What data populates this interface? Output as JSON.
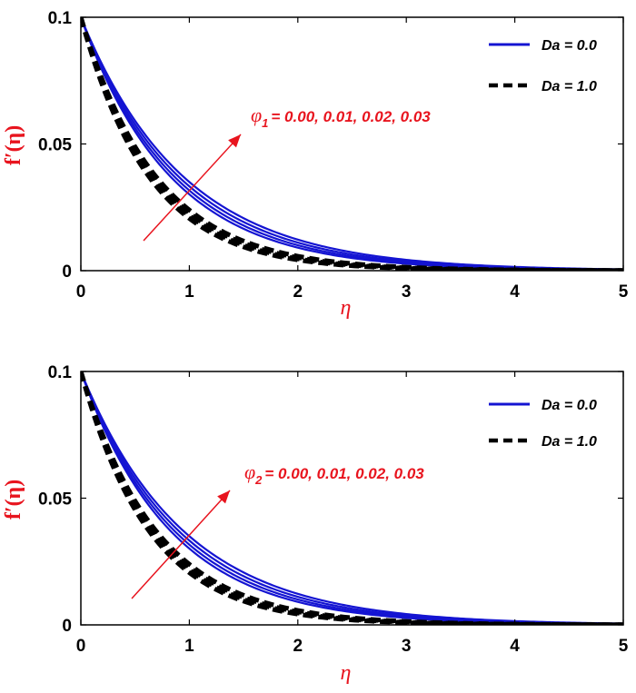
{
  "chart_data": [
    {
      "type": "line",
      "panel": "top",
      "ylabel": "f′(η)",
      "xlabel": "η",
      "xlim": [
        0,
        5
      ],
      "ylim": [
        0,
        0.1
      ],
      "xticks": [
        "0",
        "1",
        "2",
        "3",
        "4",
        "5"
      ],
      "yticks": [
        "0",
        "0.05",
        "0.1"
      ],
      "grid": false,
      "legend_position": "top-right",
      "legend": [
        {
          "label": "Da = 0.0",
          "style": "solid",
          "color": "#1414d2"
        },
        {
          "label": "Da = 1.0",
          "style": "dashed",
          "color": "#000000"
        }
      ],
      "annotation": {
        "symbol": "φ",
        "subscript": "1",
        "text": "= 0.00, 0.01, 0.02, 0.03"
      },
      "series": [
        {
          "group": "Da = 0.0",
          "phi": 0.0,
          "decay_rate": 1.2
        },
        {
          "group": "Da = 0.0",
          "phi": 0.01,
          "decay_rate": 1.15
        },
        {
          "group": "Da = 0.0",
          "phi": 0.02,
          "decay_rate": 1.1
        },
        {
          "group": "Da = 0.0",
          "phi": 0.03,
          "decay_rate": 1.05
        },
        {
          "group": "Da = 1.0",
          "phi": 0.0,
          "decay_rate": 1.58
        },
        {
          "group": "Da = 1.0",
          "phi": 0.01,
          "decay_rate": 1.53
        },
        {
          "group": "Da = 1.0",
          "phi": 0.02,
          "decay_rate": 1.48
        },
        {
          "group": "Da = 1.0",
          "phi": 0.03,
          "decay_rate": 1.43
        }
      ]
    },
    {
      "type": "line",
      "panel": "bottom",
      "ylabel": "f′(η)",
      "xlabel": "η",
      "xlim": [
        0,
        5
      ],
      "ylim": [
        0,
        0.1
      ],
      "xticks": [
        "0",
        "1",
        "2",
        "3",
        "4",
        "5"
      ],
      "yticks": [
        "0",
        "0.05",
        "0.1"
      ],
      "grid": false,
      "legend_position": "top-right",
      "legend": [
        {
          "label": "Da = 0.0",
          "style": "solid",
          "color": "#1414d2"
        },
        {
          "label": "Da = 1.0",
          "style": "dashed",
          "color": "#000000"
        }
      ],
      "annotation": {
        "symbol": "φ",
        "subscript": "2",
        "text": "= 0.00, 0.01, 0.02, 0.03"
      },
      "series": [
        {
          "group": "Da = 0.0",
          "phi": 0.0,
          "decay_rate": 1.2
        },
        {
          "group": "Da = 0.0",
          "phi": 0.01,
          "decay_rate": 1.15
        },
        {
          "group": "Da = 0.0",
          "phi": 0.02,
          "decay_rate": 1.1
        },
        {
          "group": "Da = 0.0",
          "phi": 0.03,
          "decay_rate": 1.05
        },
        {
          "group": "Da = 1.0",
          "phi": 0.0,
          "decay_rate": 1.58
        },
        {
          "group": "Da = 1.0",
          "phi": 0.01,
          "decay_rate": 1.53
        },
        {
          "group": "Da = 1.0",
          "phi": 0.02,
          "decay_rate": 1.48
        },
        {
          "group": "Da = 1.0",
          "phi": 0.03,
          "decay_rate": 1.43
        }
      ]
    }
  ]
}
